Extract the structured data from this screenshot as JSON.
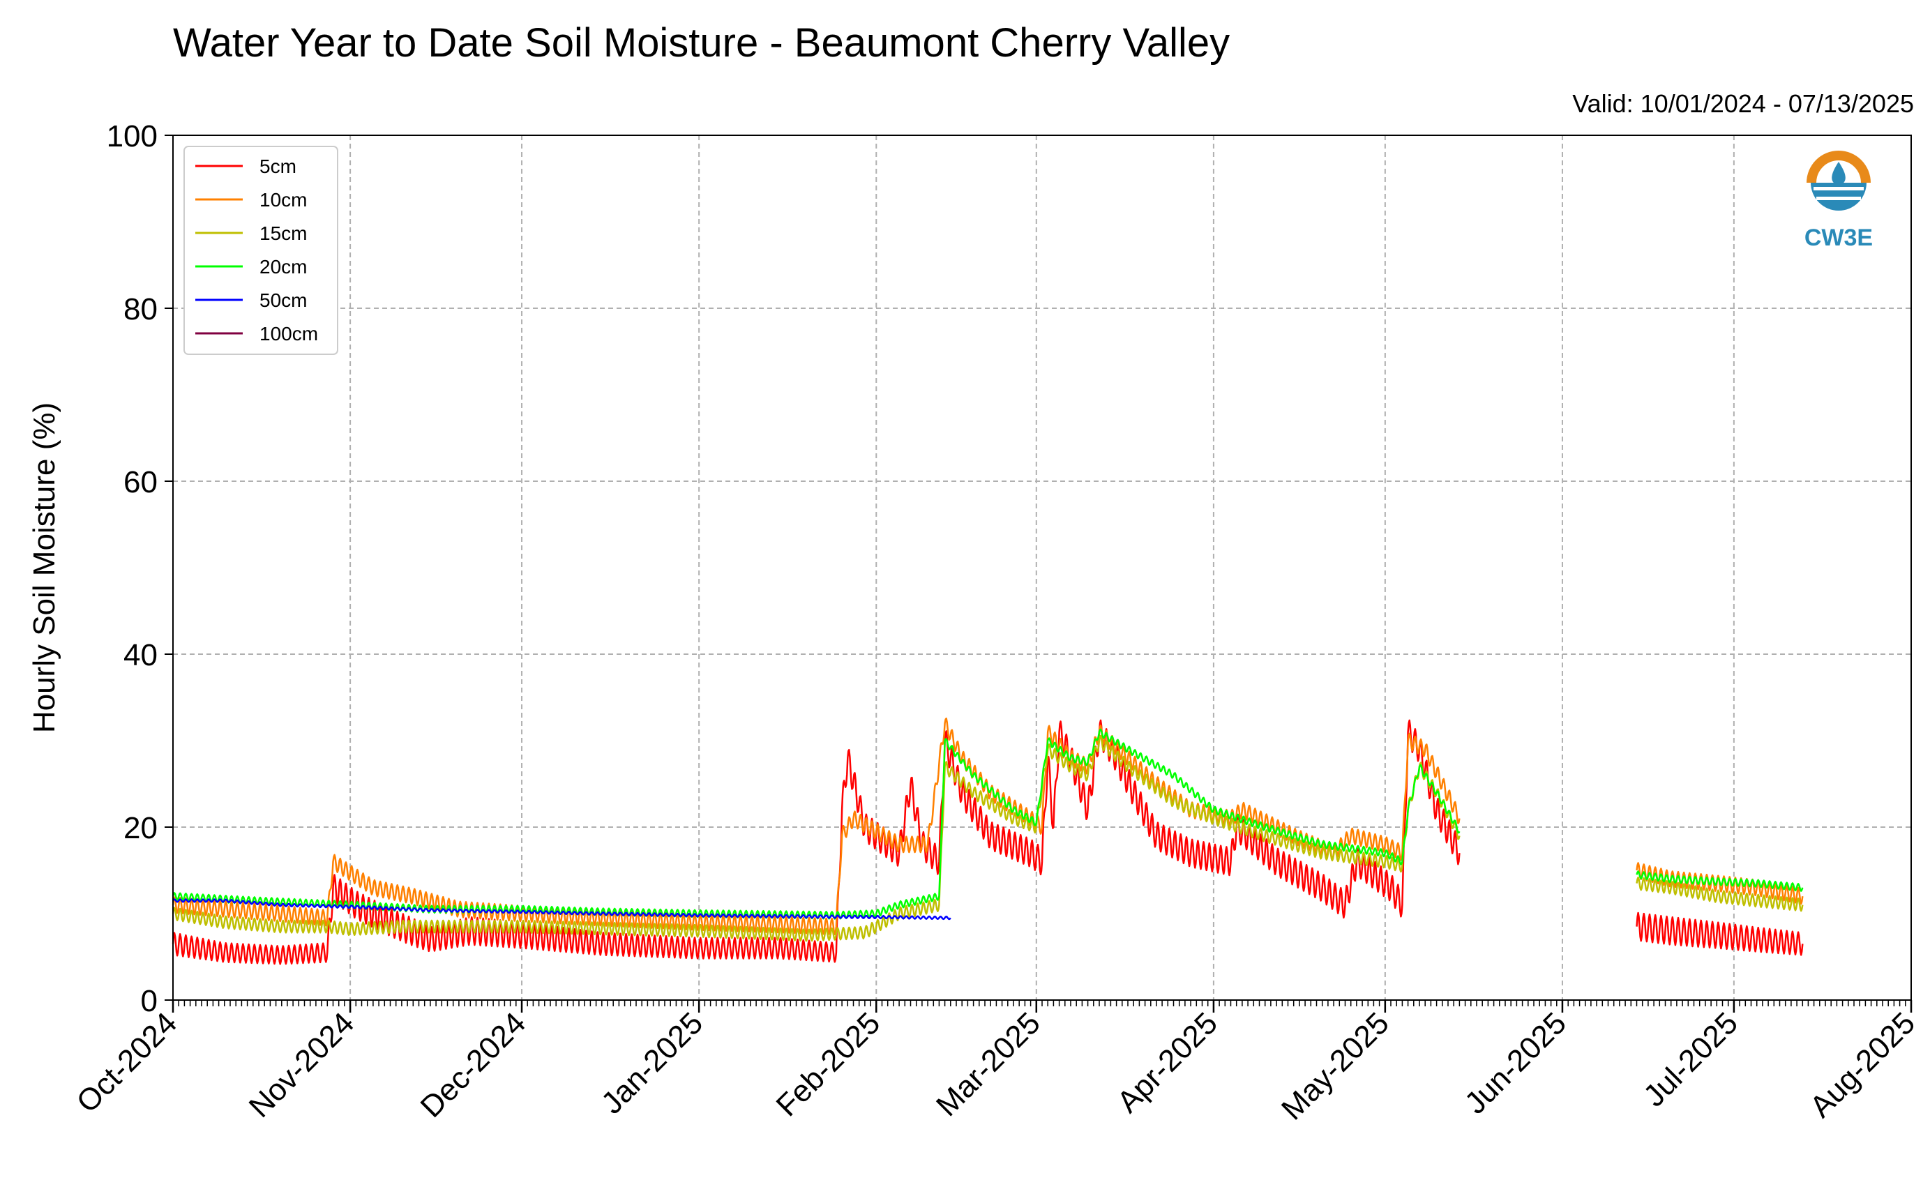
{
  "chart_data": {
    "type": "line",
    "title": "Water Year to Date Soil Moisture - Beaumont Cherry Valley",
    "subtitle": "Valid: 10/01/2024 - 07/13/2025",
    "ylabel": "Hourly Soil Moisture (%)",
    "xlabel": "",
    "ylim": [
      0,
      100
    ],
    "yticks": [
      "0",
      "20",
      "40",
      "60",
      "80",
      "100"
    ],
    "xlim": [
      "2024-10-01",
      "2025-08-01"
    ],
    "xticks": [
      {
        "date": "2024-10-01",
        "label": "Oct-2024"
      },
      {
        "date": "2024-11-01",
        "label": "Nov-2024"
      },
      {
        "date": "2024-12-01",
        "label": "Dec-2024"
      },
      {
        "date": "2025-01-01",
        "label": "Jan-2025"
      },
      {
        "date": "2025-02-01",
        "label": "Feb-2025"
      },
      {
        "date": "2025-03-01",
        "label": "Mar-2025"
      },
      {
        "date": "2025-04-01",
        "label": "Apr-2025"
      },
      {
        "date": "2025-05-01",
        "label": "May-2025"
      },
      {
        "date": "2025-06-01",
        "label": "Jun-2025"
      },
      {
        "date": "2025-07-01",
        "label": "Jul-2025"
      },
      {
        "date": "2025-08-01",
        "label": "Aug-2025"
      }
    ],
    "grid": true,
    "legend_position": "top-left",
    "logo_text": "CW3E",
    "series": [
      {
        "name": "5cm",
        "color": "#ff0000",
        "segments": [
          [
            [
              "2024-10-01",
              6.5
            ],
            [
              "2024-10-10",
              5.5
            ],
            [
              "2024-10-20",
              5.2
            ],
            [
              "2024-10-28",
              5.5
            ],
            [
              "2024-10-29",
              13
            ],
            [
              "2024-11-02",
              11
            ],
            [
              "2024-11-08",
              9
            ],
            [
              "2024-11-15",
              7
            ],
            [
              "2024-11-22",
              8
            ],
            [
              "2024-12-01",
              7.5
            ],
            [
              "2024-12-15",
              6.5
            ],
            [
              "2025-01-01",
              6
            ],
            [
              "2025-01-15",
              6
            ],
            [
              "2025-01-25",
              5.5
            ],
            [
              "2025-01-26",
              22
            ],
            [
              "2025-01-27",
              28
            ],
            [
              "2025-01-30",
              20
            ],
            [
              "2025-02-05",
              17
            ],
            [
              "2025-02-07",
              25
            ],
            [
              "2025-02-09",
              18
            ],
            [
              "2025-02-12",
              16
            ],
            [
              "2025-02-13",
              30
            ],
            [
              "2025-02-16",
              24
            ],
            [
              "2025-02-21",
              19
            ],
            [
              "2025-02-28",
              17
            ],
            [
              "2025-03-02",
              16
            ],
            [
              "2025-03-03",
              28
            ],
            [
              "2025-03-04",
              20
            ],
            [
              "2025-03-05",
              31
            ],
            [
              "2025-03-07",
              28
            ],
            [
              "2025-03-10",
              22
            ],
            [
              "2025-03-12",
              31
            ],
            [
              "2025-03-15",
              28
            ],
            [
              "2025-03-18",
              24
            ],
            [
              "2025-03-22",
              19
            ],
            [
              "2025-03-28",
              17
            ],
            [
              "2025-04-04",
              16
            ],
            [
              "2025-04-05",
              20
            ],
            [
              "2025-04-12",
              16
            ],
            [
              "2025-04-20",
              13
            ],
            [
              "2025-04-24",
              11
            ],
            [
              "2025-04-26",
              16
            ],
            [
              "2025-04-30",
              14
            ],
            [
              "2025-05-02",
              13
            ],
            [
              "2025-05-04",
              11
            ],
            [
              "2025-05-05",
              31
            ],
            [
              "2025-05-07",
              29
            ],
            [
              "2025-05-10",
              22
            ],
            [
              "2025-05-14",
              17
            ]
          ],
          [
            [
              "2025-06-14",
              8.5
            ],
            [
              "2025-06-20",
              8
            ],
            [
              "2025-06-28",
              7.5
            ],
            [
              "2025-07-05",
              7
            ],
            [
              "2025-07-13",
              6.5
            ]
          ]
        ]
      },
      {
        "name": "10cm",
        "color": "#ff8000",
        "segments": [
          [
            [
              "2024-10-01",
              11
            ],
            [
              "2024-10-20",
              10
            ],
            [
              "2024-10-28",
              9.5
            ],
            [
              "2024-10-29",
              16
            ],
            [
              "2024-11-05",
              13
            ],
            [
              "2024-11-12",
              12
            ],
            [
              "2024-11-20",
              10.5
            ],
            [
              "2024-12-01",
              10
            ],
            [
              "2024-12-15",
              9.5
            ],
            [
              "2025-01-01",
              9
            ],
            [
              "2025-01-25",
              8.5
            ],
            [
              "2025-01-26",
              19
            ],
            [
              "2025-01-28",
              21
            ],
            [
              "2025-02-05",
              18
            ],
            [
              "2025-02-10",
              18
            ],
            [
              "2025-02-13",
              32
            ],
            [
              "2025-02-16",
              28
            ],
            [
              "2025-02-21",
              24
            ],
            [
              "2025-02-28",
              21
            ],
            [
              "2025-03-02",
              20
            ],
            [
              "2025-03-03",
              31
            ],
            [
              "2025-03-07",
              28
            ],
            [
              "2025-03-10",
              27
            ],
            [
              "2025-03-12",
              31
            ],
            [
              "2025-03-17",
              28
            ],
            [
              "2025-03-22",
              25
            ],
            [
              "2025-03-28",
              22
            ],
            [
              "2025-04-04",
              21
            ],
            [
              "2025-04-06",
              22
            ],
            [
              "2025-04-15",
              19
            ],
            [
              "2025-04-22",
              17
            ],
            [
              "2025-04-25",
              19
            ],
            [
              "2025-05-01",
              18
            ],
            [
              "2025-05-04",
              17
            ],
            [
              "2025-05-05",
              30
            ],
            [
              "2025-05-08",
              29
            ],
            [
              "2025-05-11",
              25
            ],
            [
              "2025-05-14",
              21
            ]
          ],
          [
            [
              "2025-06-14",
              15
            ],
            [
              "2025-06-20",
              14
            ],
            [
              "2025-06-28",
              13.5
            ],
            [
              "2025-07-05",
              13
            ],
            [
              "2025-07-13",
              12
            ]
          ]
        ]
      },
      {
        "name": "15cm",
        "color": "#bfbf00",
        "segments": [
          [
            [
              "2024-10-01",
              10
            ],
            [
              "2024-10-10",
              9
            ],
            [
              "2024-10-20",
              8.5
            ],
            [
              "2024-10-28",
              8.5
            ],
            [
              "2024-11-01",
              8.2
            ],
            [
              "2024-11-10",
              8.5
            ],
            [
              "2024-12-01",
              8.5
            ],
            [
              "2025-01-01",
              8
            ],
            [
              "2025-01-20",
              7.5
            ],
            [
              "2025-01-30",
              7.8
            ],
            [
              "2025-02-01",
              8.5
            ],
            [
              "2025-02-05",
              10
            ],
            [
              "2025-02-12",
              11
            ],
            [
              "2025-02-13",
              27
            ],
            [
              "2025-02-18",
              24
            ],
            [
              "2025-02-25",
              21
            ],
            [
              "2025-03-01",
              20
            ],
            [
              "2025-03-03",
              29
            ],
            [
              "2025-03-07",
              27
            ],
            [
              "2025-03-10",
              26
            ],
            [
              "2025-03-12",
              30
            ],
            [
              "2025-03-17",
              27
            ],
            [
              "2025-03-25",
              23
            ],
            [
              "2025-04-01",
              21
            ],
            [
              "2025-04-10",
              19
            ],
            [
              "2025-04-20",
              17
            ],
            [
              "2025-05-01",
              16
            ],
            [
              "2025-05-04",
              15.5
            ],
            [
              "2025-05-05",
              22
            ],
            [
              "2025-05-07",
              27
            ],
            [
              "2025-05-10",
              24
            ],
            [
              "2025-05-14",
              19
            ]
          ],
          [
            [
              "2025-06-14",
              13.5
            ],
            [
              "2025-06-20",
              13
            ],
            [
              "2025-06-28",
              12
            ],
            [
              "2025-07-05",
              11.5
            ],
            [
              "2025-07-13",
              11
            ]
          ]
        ]
      },
      {
        "name": "20cm",
        "color": "#00ff00",
        "segments": [
          [
            [
              "2024-10-01",
              12
            ],
            [
              "2024-10-15",
              11.5
            ],
            [
              "2024-11-01",
              11
            ],
            [
              "2024-11-15",
              10.5
            ],
            [
              "2024-12-01",
              10.5
            ],
            [
              "2024-12-15",
              10.2
            ],
            [
              "2025-01-01",
              10
            ],
            [
              "2025-01-25",
              9.8
            ],
            [
              "2025-02-01",
              10
            ],
            [
              "2025-02-05",
              11
            ],
            [
              "2025-02-12",
              12
            ],
            [
              "2025-02-13",
              30
            ],
            [
              "2025-02-18",
              26
            ],
            [
              "2025-02-25",
              22
            ],
            [
              "2025-03-01",
              20.5
            ],
            [
              "2025-03-03",
              30
            ],
            [
              "2025-03-07",
              28
            ],
            [
              "2025-03-10",
              27.5
            ],
            [
              "2025-03-12",
              31
            ],
            [
              "2025-03-17",
              29
            ],
            [
              "2025-03-25",
              26
            ],
            [
              "2025-04-01",
              22
            ],
            [
              "2025-04-10",
              20
            ],
            [
              "2025-04-20",
              18
            ],
            [
              "2025-05-01",
              17
            ],
            [
              "2025-05-04",
              16
            ],
            [
              "2025-05-05",
              22
            ],
            [
              "2025-05-07",
              27
            ],
            [
              "2025-05-10",
              24
            ],
            [
              "2025-05-14",
              19.5
            ]
          ],
          [
            [
              "2025-06-14",
              14.5
            ],
            [
              "2025-06-20",
              14
            ],
            [
              "2025-06-28",
              13.7
            ],
            [
              "2025-07-05",
              13.5
            ],
            [
              "2025-07-13",
              13
            ]
          ]
        ]
      },
      {
        "name": "50cm",
        "color": "#0000ff",
        "segments": [
          [
            [
              "2024-10-01",
              11.5
            ],
            [
              "2024-10-10",
              11.5
            ],
            [
              "2024-10-20",
              11
            ],
            [
              "2024-11-01",
              10.8
            ],
            [
              "2024-11-15",
              10.4
            ],
            [
              "2024-12-01",
              10.2
            ],
            [
              "2024-12-15",
              10
            ],
            [
              "2025-01-01",
              9.8
            ],
            [
              "2025-01-15",
              9.7
            ],
            [
              "2025-02-01",
              9.6
            ],
            [
              "2025-02-14",
              9.5
            ]
          ]
        ]
      },
      {
        "name": "100cm",
        "color": "#800040",
        "segments": []
      }
    ]
  }
}
